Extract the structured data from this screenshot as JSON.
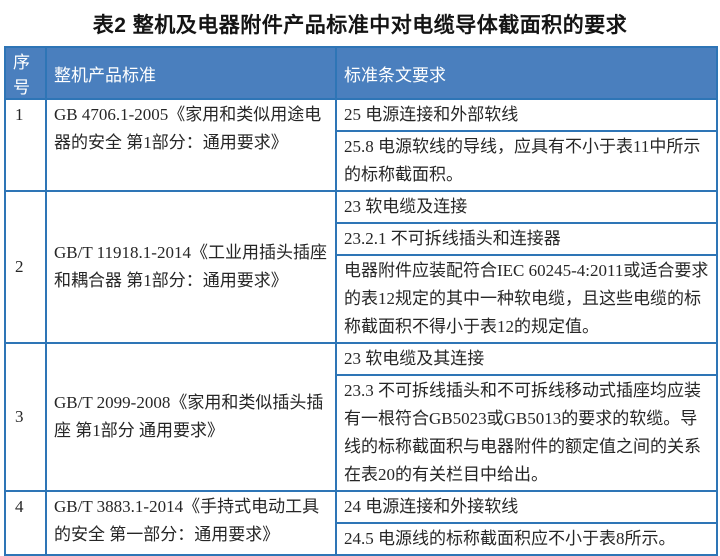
{
  "title": "表2 整机及电器附件产品标准中对电缆导体截面积的要求",
  "colors": {
    "header_bg": "#4a7fbe",
    "border": "#2e75b6",
    "header_text": "#ffffff",
    "body_text": "#262626"
  },
  "table": {
    "headers": [
      "序号",
      "整机产品标准",
      "标准条文要求"
    ],
    "rows": [
      {
        "no": "1",
        "standard": "GB 4706.1-2005《家用和类似用途电器的安全 第1部分：通用要求》",
        "requirements": [
          "25 电源连接和外部软线",
          "25.8 电源软线的导线，应具有不小于表11中所示的标称截面积。"
        ]
      },
      {
        "no": "2",
        "standard": "GB/T 11918.1-2014《工业用插头插座和耦合器 第1部分：通用要求》",
        "requirements": [
          "23 软电缆及连接",
          "23.2.1 不可拆线插头和连接器",
          "电器附件应装配符合IEC 60245-4:2011或适合要求的表12规定的其中一种软电缆，且这些电缆的标称截面积不得小于表12的规定值。"
        ]
      },
      {
        "no": "3",
        "standard": "GB/T 2099-2008《家用和类似插头插座 第1部分 通用要求》",
        "requirements": [
          "23 软电缆及其连接",
          "23.3 不可拆线插头和不可拆线移动式插座均应装有一根符合GB5023或GB5013的要求的软缆。导线的标称截面积与电器附件的额定值之间的关系在表20的有关栏目中给出。"
        ]
      },
      {
        "no": "4",
        "standard": "GB/T 3883.1-2014《手持式电动工具的安全 第一部分：通用要求》",
        "requirements": [
          "24 电源连接和外接软线",
          "24.5 电源线的标称截面积应不小于表8所示。"
        ]
      }
    ]
  }
}
